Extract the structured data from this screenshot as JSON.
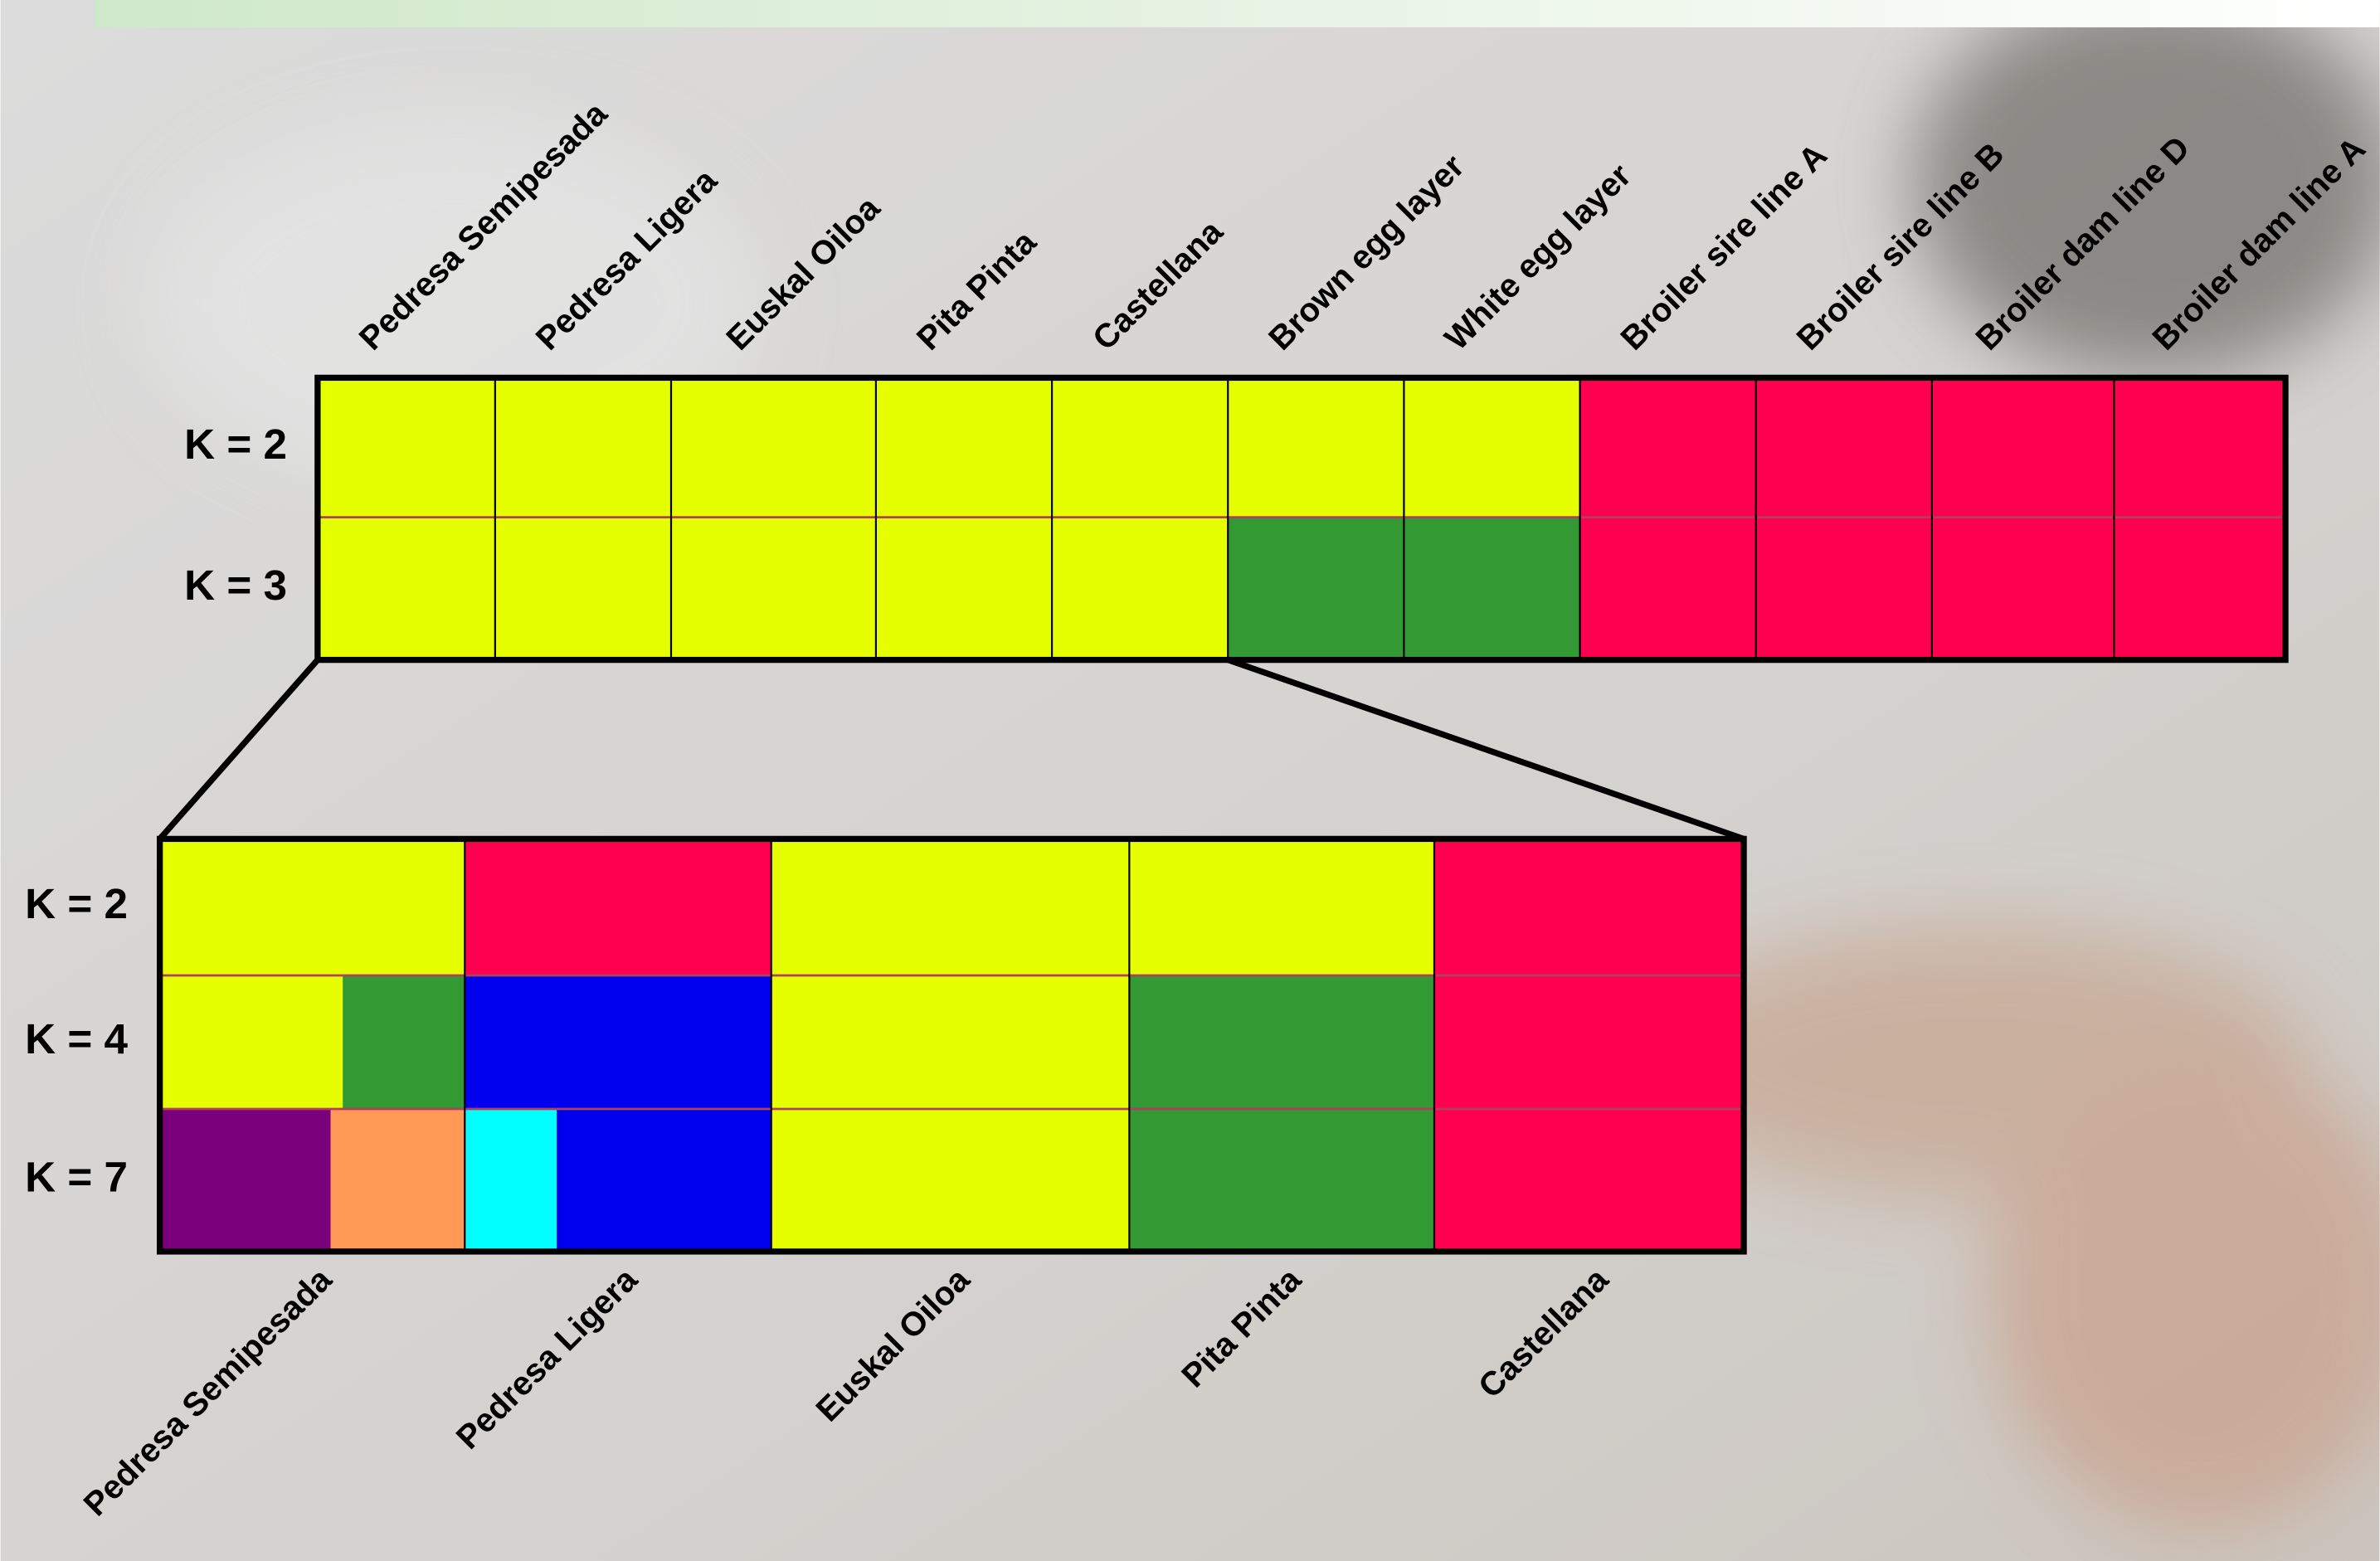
{
  "top": {
    "populations": [
      "Pedresa Semipesada",
      "Pedresa Ligera",
      "Euskal Oiloa",
      "Pita Pinta",
      "Castellana",
      "Brown egg layer",
      "White egg layer",
      "Broiler sire line A",
      "Broiler sire line B",
      "Broiler dam line D",
      "Broiler dam line A"
    ],
    "rows": [
      {
        "label": "K = 2",
        "cells": [
          "#e6ff00",
          "#e6ff00",
          "#e6ff00",
          "#e6ff00",
          "#e6ff00",
          "#e6ff00",
          "#e6ff00",
          "#ff0050",
          "#ff0050",
          "#ff0050",
          "#ff0050"
        ]
      },
      {
        "label": "K = 3",
        "cells": [
          "#e6ff00",
          "#e6ff00",
          "#e6ff00",
          "#e6ff00",
          "#e6ff00",
          "#339933",
          "#339933",
          "#ff0050",
          "#ff0050",
          "#ff0050",
          "#ff0050"
        ]
      }
    ]
  },
  "bottom": {
    "populations": [
      "Pedresa Semipesada",
      "Pedresa Ligera",
      "Euskal Oiloa",
      "Pita Pinta",
      "Castellana"
    ],
    "rows": [
      {
        "label": "K = 2",
        "cells": [
          "#e6ff00",
          "#ff0050",
          "#e6ff00",
          "#e6ff00",
          "#ff0050"
        ]
      },
      {
        "label": "K = 4",
        "cells": [
          [
            {
              "color": "#e6ff00",
              "share": 0.6
            },
            {
              "color": "#339933",
              "share": 0.4
            }
          ],
          "#0000ee",
          "#e6ff00",
          "#339933",
          "#ff0050"
        ]
      },
      {
        "label": "K = 7",
        "cells": [
          [
            {
              "color": "#7b007b",
              "share": 0.56
            },
            {
              "color": "#ff9955",
              "share": 0.44
            }
          ],
          [
            {
              "color": "#00ffff",
              "share": 0.3
            },
            {
              "color": "#0000ee",
              "share": 0.7
            }
          ],
          "#e6ff00",
          "#339933",
          "#ff0050"
        ]
      }
    ]
  }
}
